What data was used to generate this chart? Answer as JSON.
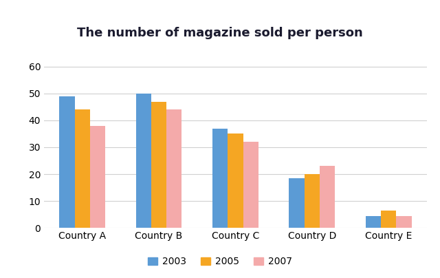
{
  "title": "The number of magazine sold per person",
  "categories": [
    "Country A",
    "Country B",
    "Country C",
    "Country D",
    "Country E"
  ],
  "years": [
    "2003",
    "2005",
    "2007"
  ],
  "values": {
    "2003": [
      49,
      50,
      37,
      18.5,
      4.5
    ],
    "2005": [
      44,
      47,
      35,
      20,
      6.5
    ],
    "2007": [
      38,
      44,
      32,
      23,
      4.5
    ]
  },
  "colors": {
    "2003": "#5B9BD5",
    "2005": "#F5A623",
    "2007": "#F4AAAA"
  },
  "ylim": [
    0,
    62
  ],
  "yticks": [
    0,
    10,
    20,
    30,
    40,
    50,
    60
  ],
  "bar_width": 0.2,
  "background_color": "#ffffff",
  "grid_color": "#d0d0d0",
  "title_fontsize": 13,
  "legend_fontsize": 10,
  "tick_fontsize": 10,
  "title_color": "#1a1a2e"
}
